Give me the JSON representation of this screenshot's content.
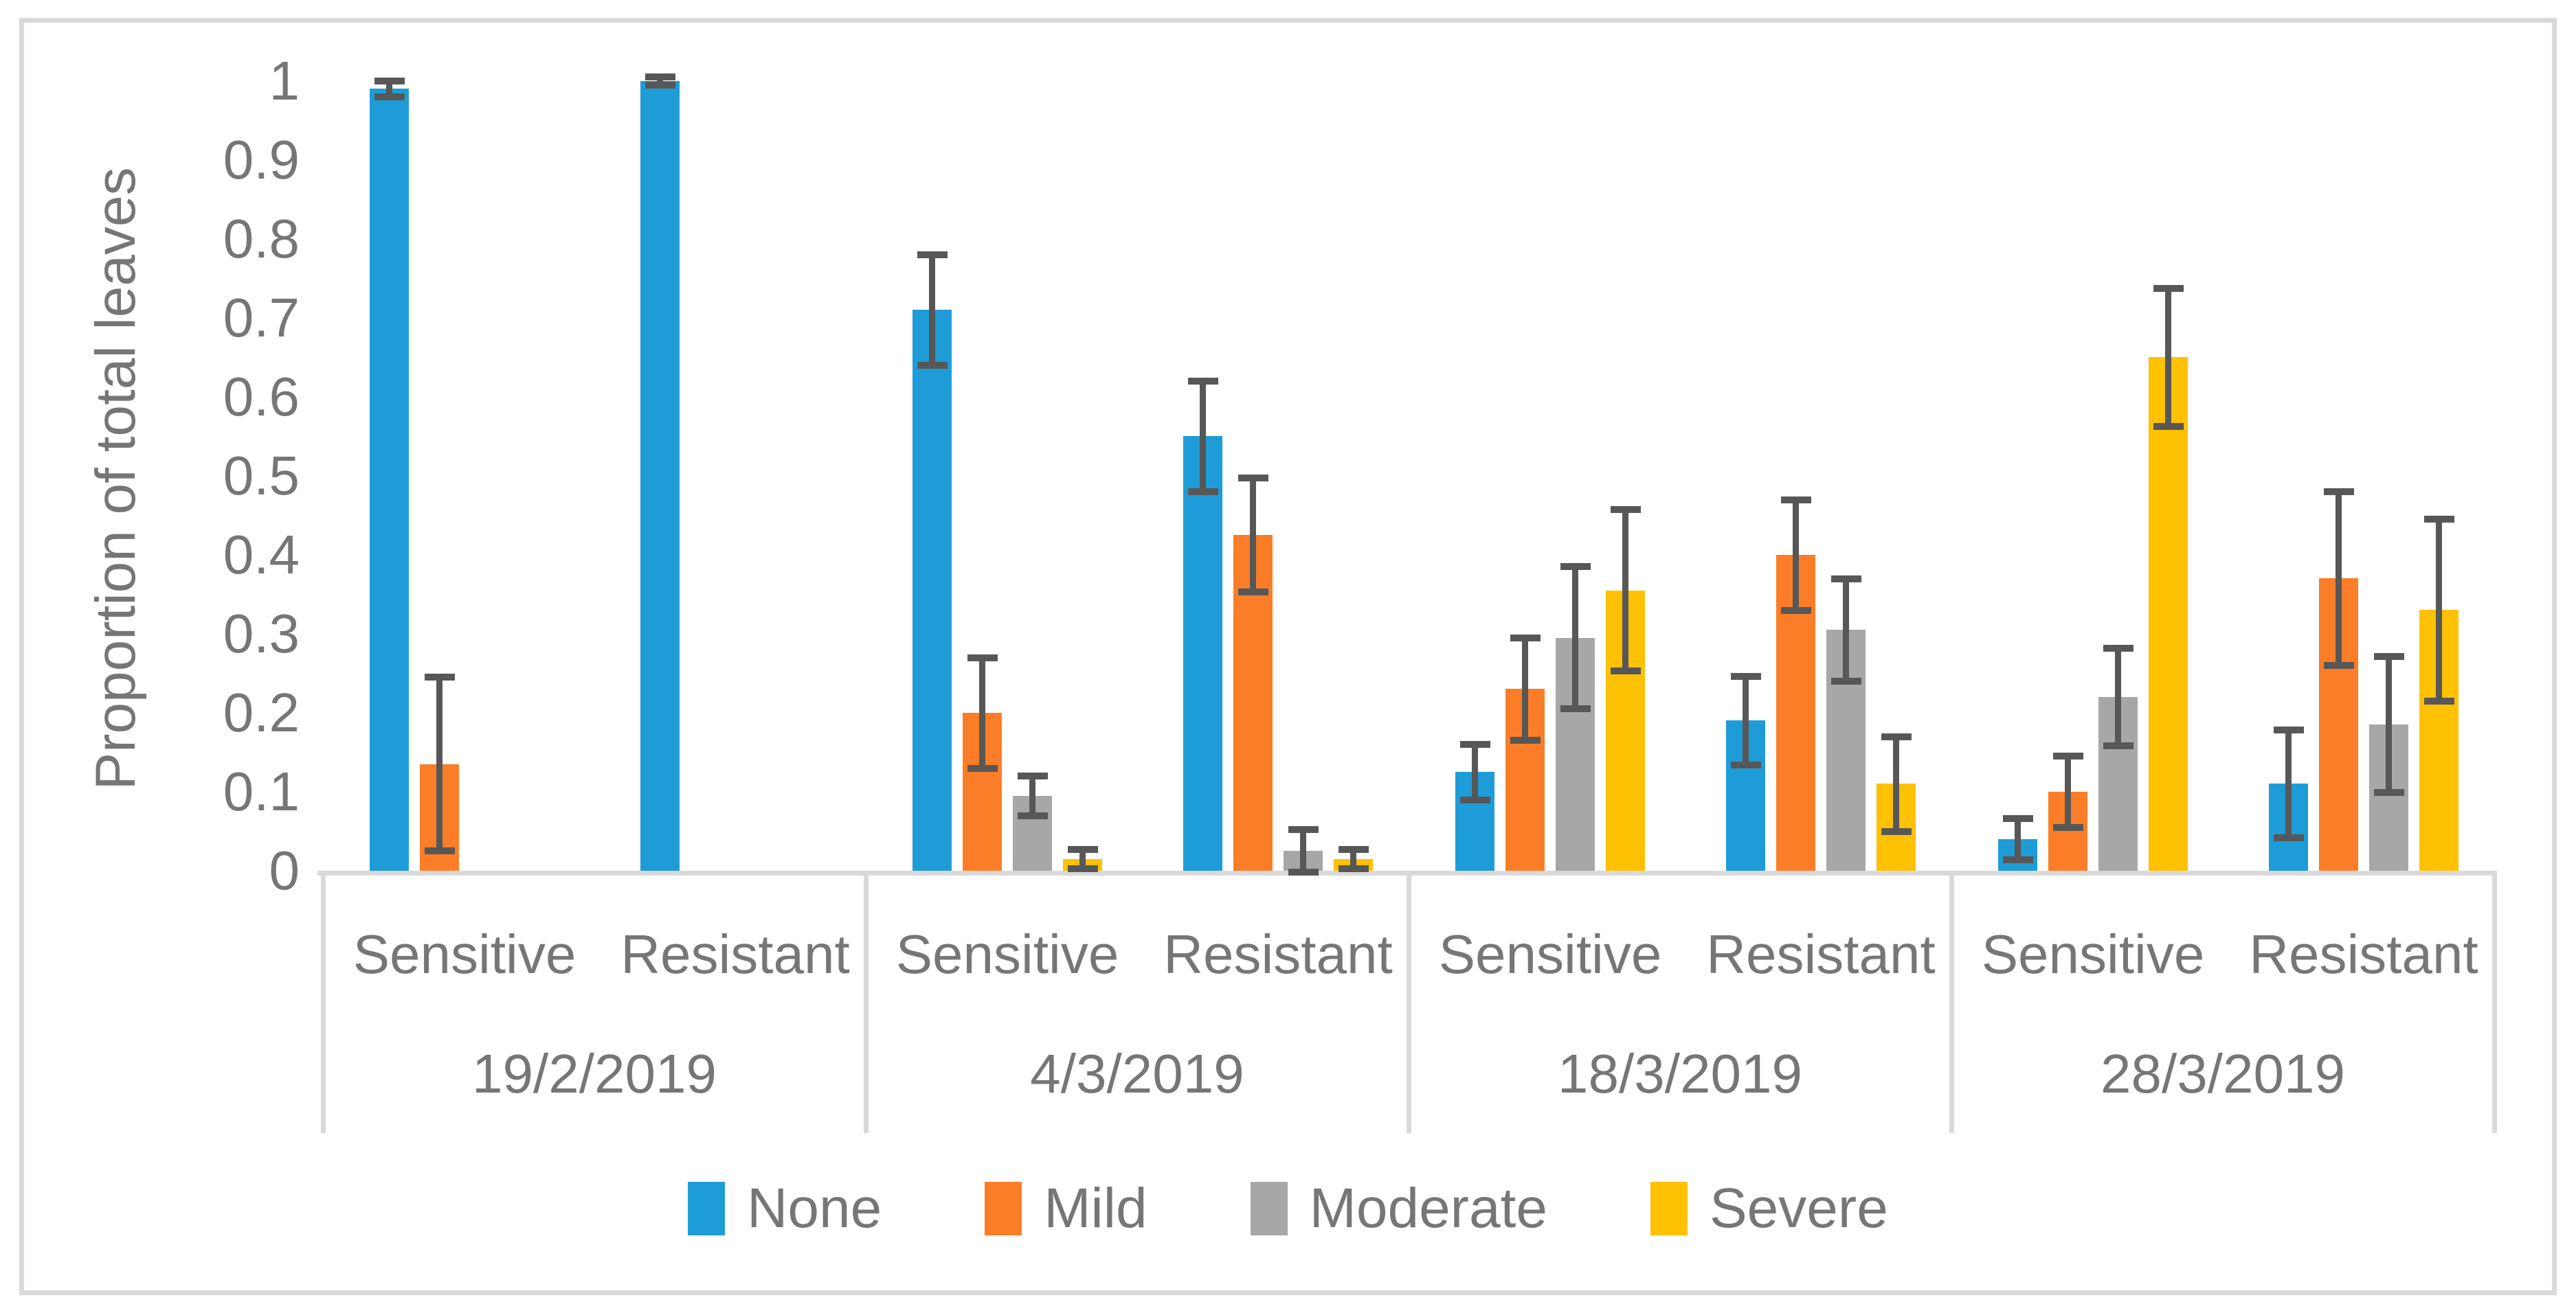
{
  "figure": {
    "background_color": "#FFFFFF",
    "border_color": "#D9D9D9",
    "text_color": "#767676",
    "axis_line_color": "#D9D9D9",
    "error_bar_color": "#575757"
  },
  "chart_data": {
    "type": "bar",
    "title": "",
    "ylabel": "Proportion of total leaves",
    "xlabel": "",
    "ylim": [
      0,
      1
    ],
    "grid": false,
    "legend_position": "bottom",
    "ytick_labels": [
      "0",
      "0.1",
      "0.2",
      "0.3",
      "0.4",
      "0.5",
      "0.6",
      "0.7",
      "0.8",
      "0.9",
      "1"
    ],
    "ytick_values": [
      0,
      0.1,
      0.2,
      0.3,
      0.4,
      0.5,
      0.6,
      0.7,
      0.8,
      0.9,
      1
    ],
    "series_names": [
      "None",
      "Mild",
      "Moderate",
      "Severe"
    ],
    "series_colors": [
      "#1E9CD7",
      "#FB7D27",
      "#A7A7A7",
      "#FFC103"
    ],
    "error_bars": true,
    "groups": [
      {
        "date": "19/2/2019",
        "clusters": [
          {
            "label": "Sensitive",
            "bars": [
              {
                "series": "None",
                "value": 0.99,
                "error": 0.01
              },
              {
                "series": "Mild",
                "value": 0.135,
                "error": 0.11
              },
              {
                "series": "Moderate",
                "value": 0,
                "error": 0
              },
              {
                "series": "Severe",
                "value": 0,
                "error": 0
              }
            ]
          },
          {
            "label": "Resistant",
            "bars": [
              {
                "series": "None",
                "value": 1.0,
                "error": 0.005
              },
              {
                "series": "Mild",
                "value": 0,
                "error": 0
              },
              {
                "series": "Moderate",
                "value": 0,
                "error": 0
              },
              {
                "series": "Severe",
                "value": 0,
                "error": 0
              }
            ]
          }
        ]
      },
      {
        "date": "4/3/2019",
        "clusters": [
          {
            "label": "Sensitive",
            "bars": [
              {
                "series": "None",
                "value": 0.71,
                "error": 0.07
              },
              {
                "series": "Mild",
                "value": 0.2,
                "error": 0.07
              },
              {
                "series": "Moderate",
                "value": 0.095,
                "error": 0.025
              },
              {
                "series": "Severe",
                "value": 0.015,
                "error": 0.012
              }
            ]
          },
          {
            "label": "Resistant",
            "bars": [
              {
                "series": "None",
                "value": 0.55,
                "error": 0.07
              },
              {
                "series": "Mild",
                "value": 0.425,
                "error": 0.072
              },
              {
                "series": "Moderate",
                "value": 0.025,
                "error": 0.027
              },
              {
                "series": "Severe",
                "value": 0.015,
                "error": 0.012
              }
            ]
          }
        ]
      },
      {
        "date": "18/3/2019",
        "clusters": [
          {
            "label": "Sensitive",
            "bars": [
              {
                "series": "None",
                "value": 0.125,
                "error": 0.035
              },
              {
                "series": "Mild",
                "value": 0.23,
                "error": 0.065
              },
              {
                "series": "Moderate",
                "value": 0.295,
                "error": 0.09
              },
              {
                "series": "Severe",
                "value": 0.355,
                "error": 0.102
              }
            ]
          },
          {
            "label": "Resistant",
            "bars": [
              {
                "series": "None",
                "value": 0.19,
                "error": 0.056
              },
              {
                "series": "Mild",
                "value": 0.4,
                "error": 0.07
              },
              {
                "series": "Moderate",
                "value": 0.305,
                "error": 0.065
              },
              {
                "series": "Severe",
                "value": 0.11,
                "error": 0.06
              }
            ]
          }
        ]
      },
      {
        "date": "28/3/2019",
        "clusters": [
          {
            "label": "Sensitive",
            "bars": [
              {
                "series": "None",
                "value": 0.04,
                "error": 0.026
              },
              {
                "series": "Mild",
                "value": 0.1,
                "error": 0.045
              },
              {
                "series": "Moderate",
                "value": 0.22,
                "error": 0.062
              },
              {
                "series": "Severe",
                "value": 0.65,
                "error": 0.087
              }
            ]
          },
          {
            "label": "Resistant",
            "bars": [
              {
                "series": "None",
                "value": 0.11,
                "error": 0.068
              },
              {
                "series": "Mild",
                "value": 0.37,
                "error": 0.11
              },
              {
                "series": "Moderate",
                "value": 0.185,
                "error": 0.086
              },
              {
                "series": "Severe",
                "value": 0.33,
                "error": 0.115
              }
            ]
          }
        ]
      }
    ],
    "legend": [
      {
        "label": "None",
        "color": "#1E9CD7"
      },
      {
        "label": "Mild",
        "color": "#FB7D27"
      },
      {
        "label": "Moderate",
        "color": "#A7A7A7"
      },
      {
        "label": "Severe",
        "color": "#FFC103"
      }
    ]
  }
}
